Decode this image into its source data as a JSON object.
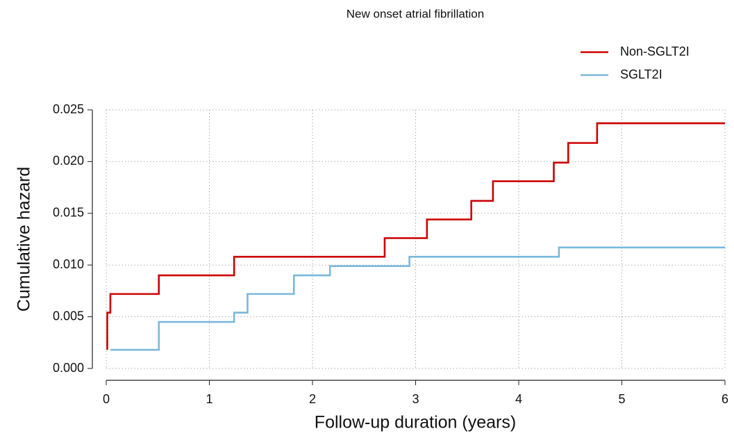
{
  "chart_data": {
    "type": "step",
    "title": "New onset atrial fibrillation",
    "x_label": "Follow-up duration (years)",
    "y_label": "Cumulative hazard",
    "xlim": [
      0,
      6
    ],
    "xticks": [
      0,
      1,
      2,
      3,
      4,
      5,
      6
    ],
    "ylim": [
      0,
      0.025
    ],
    "yticks": [
      {
        "value": 0,
        "label": "0.000"
      },
      {
        "value": 0.005,
        "label": "0.005"
      },
      {
        "value": 0.01,
        "label": "0.010"
      },
      {
        "value": 0.015,
        "label": "0.015"
      },
      {
        "value": 0.02,
        "label": "0.020"
      },
      {
        "value": 0.025,
        "label": "0.025"
      }
    ],
    "grid": true,
    "legend": "top-right",
    "series": [
      {
        "name": "Non-SGLT2I",
        "color": "#cc0000",
        "x": [
          0.01,
          0.01,
          0.04,
          0.51,
          1.24,
          2.7,
          3.11,
          3.54,
          3.75,
          4.34,
          4.48,
          4.76,
          6
        ],
        "values": [
          0.0018,
          0.0054,
          0.0072,
          0.009,
          0.0108,
          0.0126,
          0.0144,
          0.0162,
          0.0181,
          0.0199,
          0.0218,
          0.0237,
          0.0237
        ]
      },
      {
        "name": "SGLT2I",
        "color": "#7ab8dc",
        "x": [
          0.04,
          0.51,
          1.24,
          1.37,
          1.82,
          2.17,
          2.94,
          4.39,
          6
        ],
        "values": [
          0.0018,
          0.0045,
          0.0054,
          0.0072,
          0.009,
          0.0099,
          0.0108,
          0.0117,
          0.0117
        ]
      }
    ]
  }
}
